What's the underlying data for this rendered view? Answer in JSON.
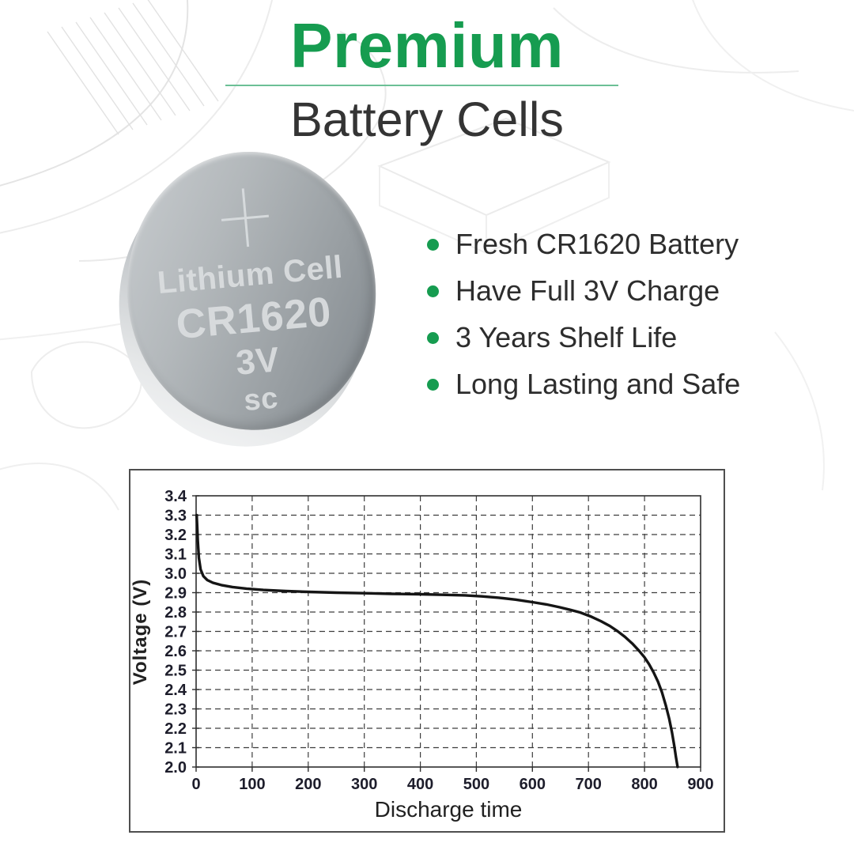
{
  "header": {
    "title": "Premium",
    "subtitle": "Battery Cells",
    "accent_color": "#169c50",
    "divider_color": "#6cc096"
  },
  "battery": {
    "terminal_symbol": "+",
    "type": "Lithium Cell",
    "model": "CR1620",
    "voltage": "3V",
    "brand": "sc"
  },
  "features": [
    "Fresh CR1620 Battery",
    "Have Full 3V Charge",
    "3 Years Shelf Life",
    "Long Lasting and Safe"
  ],
  "feature_bullet_color": "#169c50",
  "chart_data": {
    "type": "line",
    "title": "",
    "xlabel": "Discharge time",
    "ylabel": "Voltage (V)",
    "xlim": [
      0,
      900
    ],
    "ylim": [
      2.0,
      3.4
    ],
    "xticks": [
      0,
      100,
      200,
      300,
      400,
      500,
      600,
      700,
      800,
      900
    ],
    "xtick_labels": [
      "0",
      "100",
      "200",
      "300",
      "400",
      "500",
      "600",
      "700",
      "800",
      "900"
    ],
    "yticks": [
      2.0,
      2.1,
      2.2,
      2.3,
      2.4,
      2.5,
      2.6,
      2.7,
      2.8,
      2.9,
      3.0,
      3.1,
      3.2,
      3.3,
      3.4
    ],
    "ytick_labels": [
      "2.0",
      "2.1",
      "2.2",
      "2.3",
      "2.4",
      "2.5",
      "2.6",
      "2.7",
      "2.8",
      "2.9",
      "3.0",
      "3.1",
      "3.2",
      "3.3",
      "3.4"
    ],
    "grid": "dashed",
    "legend": false,
    "line_color": "#151515",
    "series": [
      {
        "points": [
          [
            1,
            3.3
          ],
          [
            2,
            3.24
          ],
          [
            3,
            3.17
          ],
          [
            5,
            3.08
          ],
          [
            8,
            3.02
          ],
          [
            13,
            2.985
          ],
          [
            20,
            2.965
          ],
          [
            30,
            2.951
          ],
          [
            45,
            2.939
          ],
          [
            65,
            2.929
          ],
          [
            90,
            2.921
          ],
          [
            120,
            2.914
          ],
          [
            160,
            2.908
          ],
          [
            200,
            2.904
          ],
          [
            250,
            2.9
          ],
          [
            300,
            2.897
          ],
          [
            350,
            2.894
          ],
          [
            400,
            2.892
          ],
          [
            440,
            2.889
          ],
          [
            480,
            2.886
          ],
          [
            510,
            2.881
          ],
          [
            540,
            2.874
          ],
          [
            570,
            2.864
          ],
          [
            600,
            2.851
          ],
          [
            625,
            2.839
          ],
          [
            648,
            2.825
          ],
          [
            668,
            2.811
          ],
          [
            685,
            2.798
          ],
          [
            705,
            2.776
          ],
          [
            722,
            2.753
          ],
          [
            738,
            2.728
          ],
          [
            752,
            2.701
          ],
          [
            765,
            2.672
          ],
          [
            778,
            2.638
          ],
          [
            790,
            2.601
          ],
          [
            800,
            2.566
          ],
          [
            808,
            2.531
          ],
          [
            816,
            2.489
          ],
          [
            824,
            2.441
          ],
          [
            831,
            2.386
          ],
          [
            838,
            2.318
          ],
          [
            844,
            2.249
          ],
          [
            849,
            2.179
          ],
          [
            853,
            2.11
          ],
          [
            856,
            2.052
          ],
          [
            859,
            2.001
          ]
        ]
      }
    ]
  }
}
